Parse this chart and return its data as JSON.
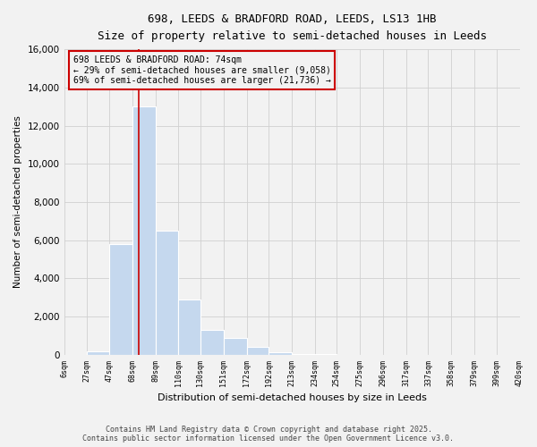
{
  "title": "698, LEEDS & BRADFORD ROAD, LEEDS, LS13 1HB",
  "subtitle": "Size of property relative to semi-detached houses in Leeds",
  "xlabel": "Distribution of semi-detached houses by size in Leeds",
  "ylabel": "Number of semi-detached properties",
  "property_size": 74,
  "annotation_text": "698 LEEDS & BRADFORD ROAD: 74sqm\n← 29% of semi-detached houses are smaller (9,058)\n69% of semi-detached houses are larger (21,736) →",
  "bins": [
    6,
    27,
    47,
    68,
    89,
    110,
    130,
    151,
    172,
    192,
    213,
    234,
    254,
    275,
    296,
    317,
    337,
    358,
    379,
    399,
    420
  ],
  "bin_labels": [
    "6sqm",
    "27sqm",
    "47sqm",
    "68sqm",
    "89sqm",
    "110sqm",
    "130sqm",
    "151sqm",
    "172sqm",
    "192sqm",
    "213sqm",
    "234sqm",
    "254sqm",
    "275sqm",
    "296sqm",
    "317sqm",
    "337sqm",
    "358sqm",
    "379sqm",
    "399sqm",
    "420sqm"
  ],
  "counts": [
    0,
    200,
    5800,
    13000,
    6500,
    2900,
    1300,
    900,
    400,
    150,
    50,
    20,
    0,
    0,
    0,
    0,
    0,
    0,
    0,
    0
  ],
  "bar_color": "#c5d8ee",
  "grid_color": "#d0d0d0",
  "annotation_box_color": "#cc0000",
  "vline_color": "#cc0000",
  "ylim": [
    0,
    16000
  ],
  "yticks": [
    0,
    2000,
    4000,
    6000,
    8000,
    10000,
    12000,
    14000,
    16000
  ],
  "footer_line1": "Contains HM Land Registry data © Crown copyright and database right 2025.",
  "footer_line2": "Contains public sector information licensed under the Open Government Licence v3.0.",
  "bg_color": "#f2f2f2"
}
